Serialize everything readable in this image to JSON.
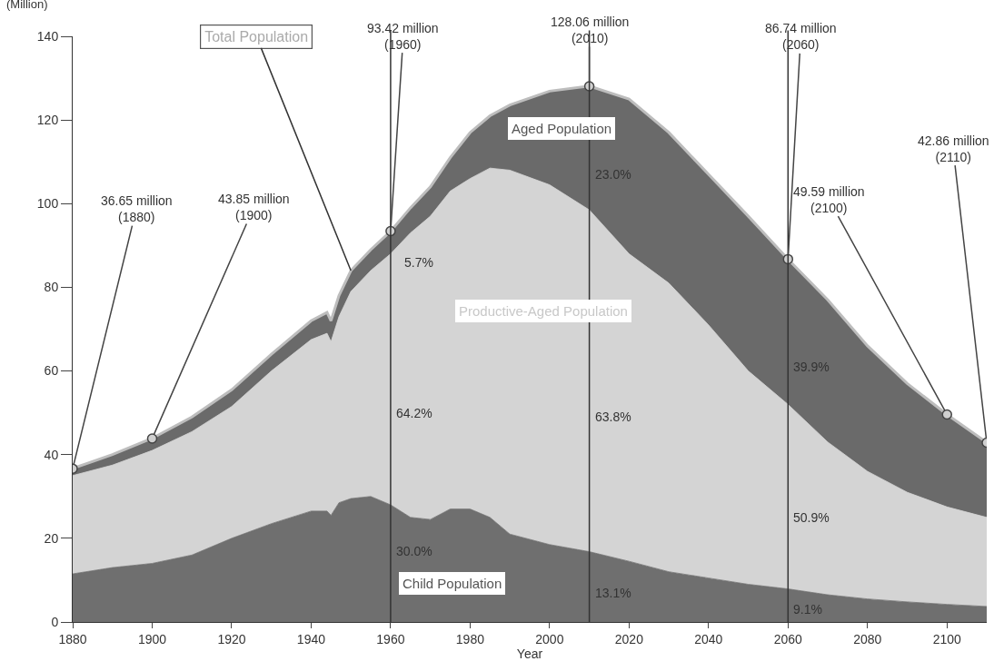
{
  "chart_data": {
    "type": "area",
    "stacked": true,
    "xlabel": "Year",
    "ylabel": "(Million)",
    "x": [
      1880,
      1890,
      1900,
      1910,
      1920,
      1930,
      1940,
      1944,
      1945,
      1947,
      1950,
      1955,
      1960,
      1965,
      1970,
      1975,
      1980,
      1985,
      1990,
      2000,
      2010,
      2020,
      2030,
      2040,
      2050,
      2060,
      2070,
      2080,
      2090,
      2100,
      2110
    ],
    "series": [
      {
        "name": "Child Population",
        "color": "#6f6f6f",
        "values": [
          11.5,
          13,
          14,
          16,
          20,
          23.5,
          26.5,
          26.5,
          25.5,
          28.5,
          29.5,
          30,
          28,
          25,
          24.5,
          27,
          27,
          25,
          21,
          18.5,
          16.8,
          14.5,
          12,
          10.5,
          9,
          7.9,
          6.5,
          5.5,
          4.8,
          4.2,
          3.7
        ]
      },
      {
        "name": "Productive-Aged Population",
        "color": "#d4d4d4",
        "values": [
          23.5,
          24.5,
          27,
          29.5,
          31.5,
          36.5,
          41,
          42.5,
          41.5,
          44.5,
          49.5,
          54,
          60,
          68,
          72.5,
          76,
          79,
          83.5,
          87,
          86,
          81.7,
          73.5,
          69,
          60.5,
          51,
          44.1,
          36.5,
          30.5,
          26.2,
          23.3,
          21.3
        ]
      },
      {
        "name": "Aged Population",
        "color": "#6a6a6a",
        "values": [
          1.7,
          2.5,
          2.9,
          3.5,
          4,
          4,
          4.5,
          5,
          5,
          5,
          5,
          5,
          5.4,
          6,
          7,
          8,
          11,
          12.5,
          15.6,
          22.4,
          29.6,
          37,
          36,
          36,
          37,
          34.7,
          34,
          30,
          26,
          22.1,
          17.9
        ]
      }
    ],
    "ref_lines": [
      {
        "axis": "x",
        "value": 1960,
        "color": "#333333"
      },
      {
        "axis": "x",
        "value": 2010,
        "color": "#333333"
      },
      {
        "axis": "x",
        "value": 2060,
        "color": "#333333"
      }
    ],
    "annotations": [
      {
        "text": "36.65 million\n(1880)",
        "x": 1880,
        "y": 36.65
      },
      {
        "text": "43.85 million\n(1900)",
        "x": 1900,
        "y": 43.85
      },
      {
        "text": "93.42 million\n(1960)",
        "x": 1960,
        "y": 93.42
      },
      {
        "text": "128.06 million\n(2010)",
        "x": 2010,
        "y": 128.06
      },
      {
        "text": "86.74 million\n(2060)",
        "x": 2060,
        "y": 86.74
      },
      {
        "text": "49.59 million\n(2100)",
        "x": 2100,
        "y": 49.59
      },
      {
        "text": "42.86 million\n(2110)",
        "x": 2110,
        "y": 42.86
      },
      {
        "text": "Total Population",
        "x": 1950,
        "y": 84
      },
      "5.7%",
      "64.2%",
      "30.0%",
      "23.0%",
      "63.8%",
      "13.1%",
      "39.9%",
      "50.9%",
      "9.1%"
    ],
    "xlim": [
      1880,
      2110
    ],
    "xticks": [
      1880,
      1900,
      1920,
      1940,
      1960,
      1980,
      2000,
      2020,
      2040,
      2060,
      2080,
      2100
    ],
    "ylim": [
      0,
      140
    ],
    "yticks": [
      0,
      20,
      40,
      60,
      80,
      100,
      120,
      140
    ],
    "grid": false,
    "legend": false
  }
}
